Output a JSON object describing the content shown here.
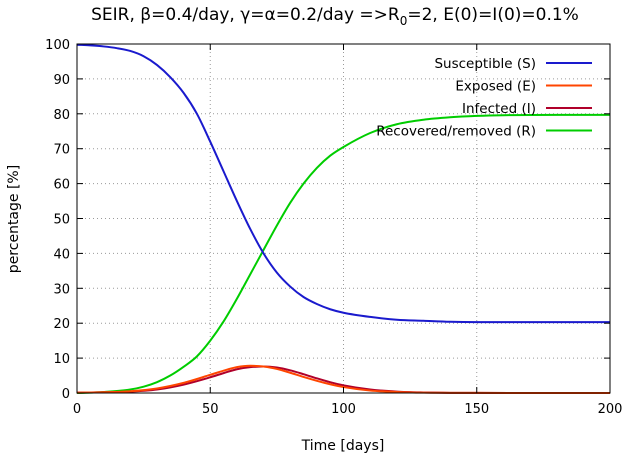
{
  "chart_data": {
    "type": "line",
    "title_main": "SEIR, β=0.4/day, γ=α=0.2/day =>R",
    "title_sub": "0",
    "title_rest": "=2, E(0)=I(0)=0.1%",
    "xlabel": "Time [days]",
    "ylabel": "percentage [%]",
    "xlim": [
      0,
      200
    ],
    "ylim": [
      0,
      100
    ],
    "xticks": [
      0,
      50,
      100,
      150,
      200
    ],
    "yticks": [
      0,
      10,
      20,
      30,
      40,
      50,
      60,
      70,
      80,
      90,
      100
    ],
    "grid": true,
    "legend_position": "top-right",
    "series": [
      {
        "name": "Susceptible (S)",
        "color": "#1a1acd",
        "x": [
          0,
          5,
          10,
          15,
          20,
          25,
          30,
          35,
          40,
          45,
          50,
          55,
          60,
          65,
          70,
          75,
          80,
          85,
          90,
          95,
          100,
          110,
          120,
          130,
          140,
          150,
          160,
          170,
          180,
          190,
          200
        ],
        "y": [
          99.8,
          99.6,
          99.3,
          98.8,
          98.0,
          96.5,
          94.0,
          90.5,
          86.0,
          80.0,
          72.0,
          63.5,
          55.0,
          47.0,
          40.0,
          34.5,
          30.5,
          27.5,
          25.5,
          24.0,
          23.0,
          21.8,
          21.0,
          20.7,
          20.4,
          20.3,
          20.3,
          20.3,
          20.3,
          20.3,
          20.3
        ]
      },
      {
        "name": "Exposed (E)",
        "color": "#ff4500",
        "x": [
          0,
          10,
          20,
          30,
          40,
          50,
          55,
          60,
          65,
          70,
          75,
          80,
          85,
          90,
          95,
          100,
          110,
          120,
          130,
          140,
          150,
          200
        ],
        "y": [
          0.1,
          0.2,
          0.5,
          1.3,
          2.9,
          5.2,
          6.4,
          7.4,
          7.8,
          7.6,
          6.9,
          5.8,
          4.6,
          3.5,
          2.5,
          1.7,
          0.7,
          0.3,
          0.1,
          0.05,
          0.02,
          0.0
        ]
      },
      {
        "name": "Infected (I)",
        "color": "#b0002a",
        "x": [
          0,
          10,
          20,
          30,
          40,
          50,
          55,
          60,
          65,
          70,
          75,
          80,
          85,
          90,
          95,
          100,
          110,
          120,
          130,
          140,
          150,
          200
        ],
        "y": [
          0.1,
          0.2,
          0.4,
          1.0,
          2.4,
          4.5,
          5.7,
          6.8,
          7.4,
          7.6,
          7.3,
          6.5,
          5.4,
          4.2,
          3.1,
          2.2,
          1.0,
          0.4,
          0.15,
          0.05,
          0.02,
          0.0
        ]
      },
      {
        "name": "Recovered/removed (R)",
        "color": "#00cd00",
        "x": [
          0,
          10,
          20,
          25,
          30,
          35,
          40,
          45,
          50,
          55,
          60,
          65,
          70,
          75,
          80,
          85,
          90,
          95,
          100,
          110,
          120,
          130,
          140,
          150,
          160,
          180,
          200
        ],
        "y": [
          0.0,
          0.3,
          1.0,
          1.8,
          3.1,
          5.0,
          7.5,
          10.5,
          15.0,
          20.5,
          27.0,
          34.0,
          41.0,
          48.0,
          54.5,
          60.0,
          64.5,
          68.0,
          70.5,
          74.5,
          77.0,
          78.3,
          79.0,
          79.4,
          79.6,
          79.7,
          79.7
        ]
      }
    ]
  }
}
